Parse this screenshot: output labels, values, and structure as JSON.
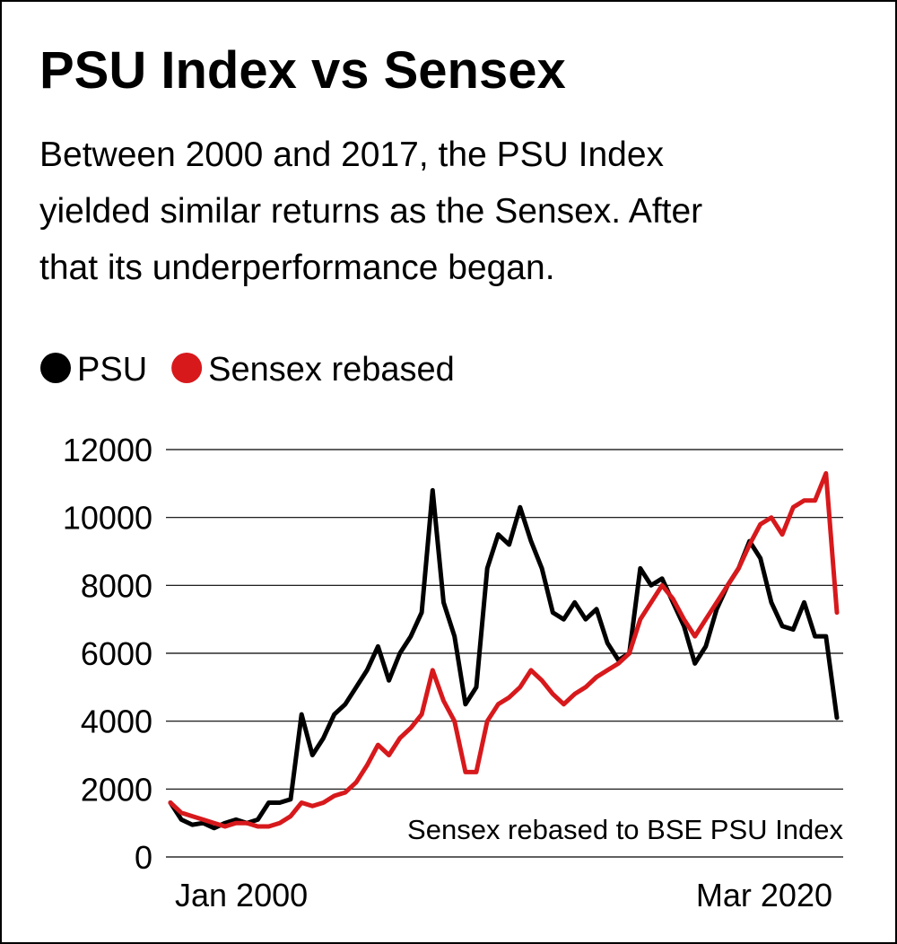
{
  "chart_data": {
    "type": "line",
    "title": "PSU Index vs Sensex",
    "subtitle": [
      "Between 2000 and 2017, the PSU Index",
      "yielded similar returns as the Sensex. After",
      "that its underperformance began."
    ],
    "annotation": "Sensex rebased to BSE PSU Index",
    "categories": [
      "Jan 2000",
      null,
      null,
      null,
      null,
      null,
      null,
      null,
      null,
      null,
      null,
      null,
      null,
      null,
      null,
      null,
      null,
      null,
      null,
      null,
      null,
      null,
      null,
      null,
      null,
      null,
      null,
      null,
      null,
      null,
      null,
      null,
      null,
      null,
      null,
      null,
      null,
      null,
      null,
      null,
      null,
      null,
      null,
      null,
      null,
      null,
      null,
      null,
      null,
      null,
      null,
      null,
      null,
      null,
      null,
      null,
      null,
      null,
      null,
      null,
      null,
      "Mar 2020"
    ],
    "series": [
      {
        "name": "PSU",
        "color": "#000000",
        "values": [
          1600,
          1100,
          950,
          1000,
          850,
          1000,
          1100,
          1000,
          1100,
          1600,
          1600,
          1700,
          4200,
          3000,
          3500,
          4200,
          4500,
          5000,
          5500,
          6200,
          5200,
          6000,
          6500,
          7200,
          10800,
          7500,
          6500,
          4500,
          5000,
          8500,
          9500,
          9200,
          10300,
          9300,
          8500,
          7200,
          7000,
          7500,
          7000,
          7300,
          6300,
          5800,
          6000,
          8500,
          8000,
          8200,
          7500,
          6800,
          5700,
          6200,
          7300,
          8000,
          8500,
          9300,
          8800,
          7500,
          6800,
          6700,
          7500,
          6500,
          6500,
          4100
        ]
      },
      {
        "name": "Sensex rebased",
        "color": "#d7191c",
        "values": [
          1600,
          1300,
          1200,
          1100,
          1000,
          900,
          1000,
          1000,
          900,
          900,
          1000,
          1200,
          1600,
          1500,
          1600,
          1800,
          1900,
          2200,
          2700,
          3300,
          3000,
          3500,
          3800,
          4200,
          5500,
          4600,
          4000,
          2500,
          2500,
          4000,
          4500,
          4700,
          5000,
          5500,
          5200,
          4800,
          4500,
          4800,
          5000,
          5300,
          5500,
          5700,
          6000,
          7000,
          7500,
          8000,
          7600,
          7000,
          6500,
          7000,
          7500,
          8000,
          8500,
          9200,
          9800,
          10000,
          9500,
          10300,
          10500,
          10500,
          11300,
          7200
        ]
      }
    ],
    "ylim": [
      0,
      12000
    ],
    "yticks": [
      0,
      2000,
      4000,
      6000,
      8000,
      10000,
      12000
    ],
    "grid": true,
    "legend": "top-left"
  }
}
